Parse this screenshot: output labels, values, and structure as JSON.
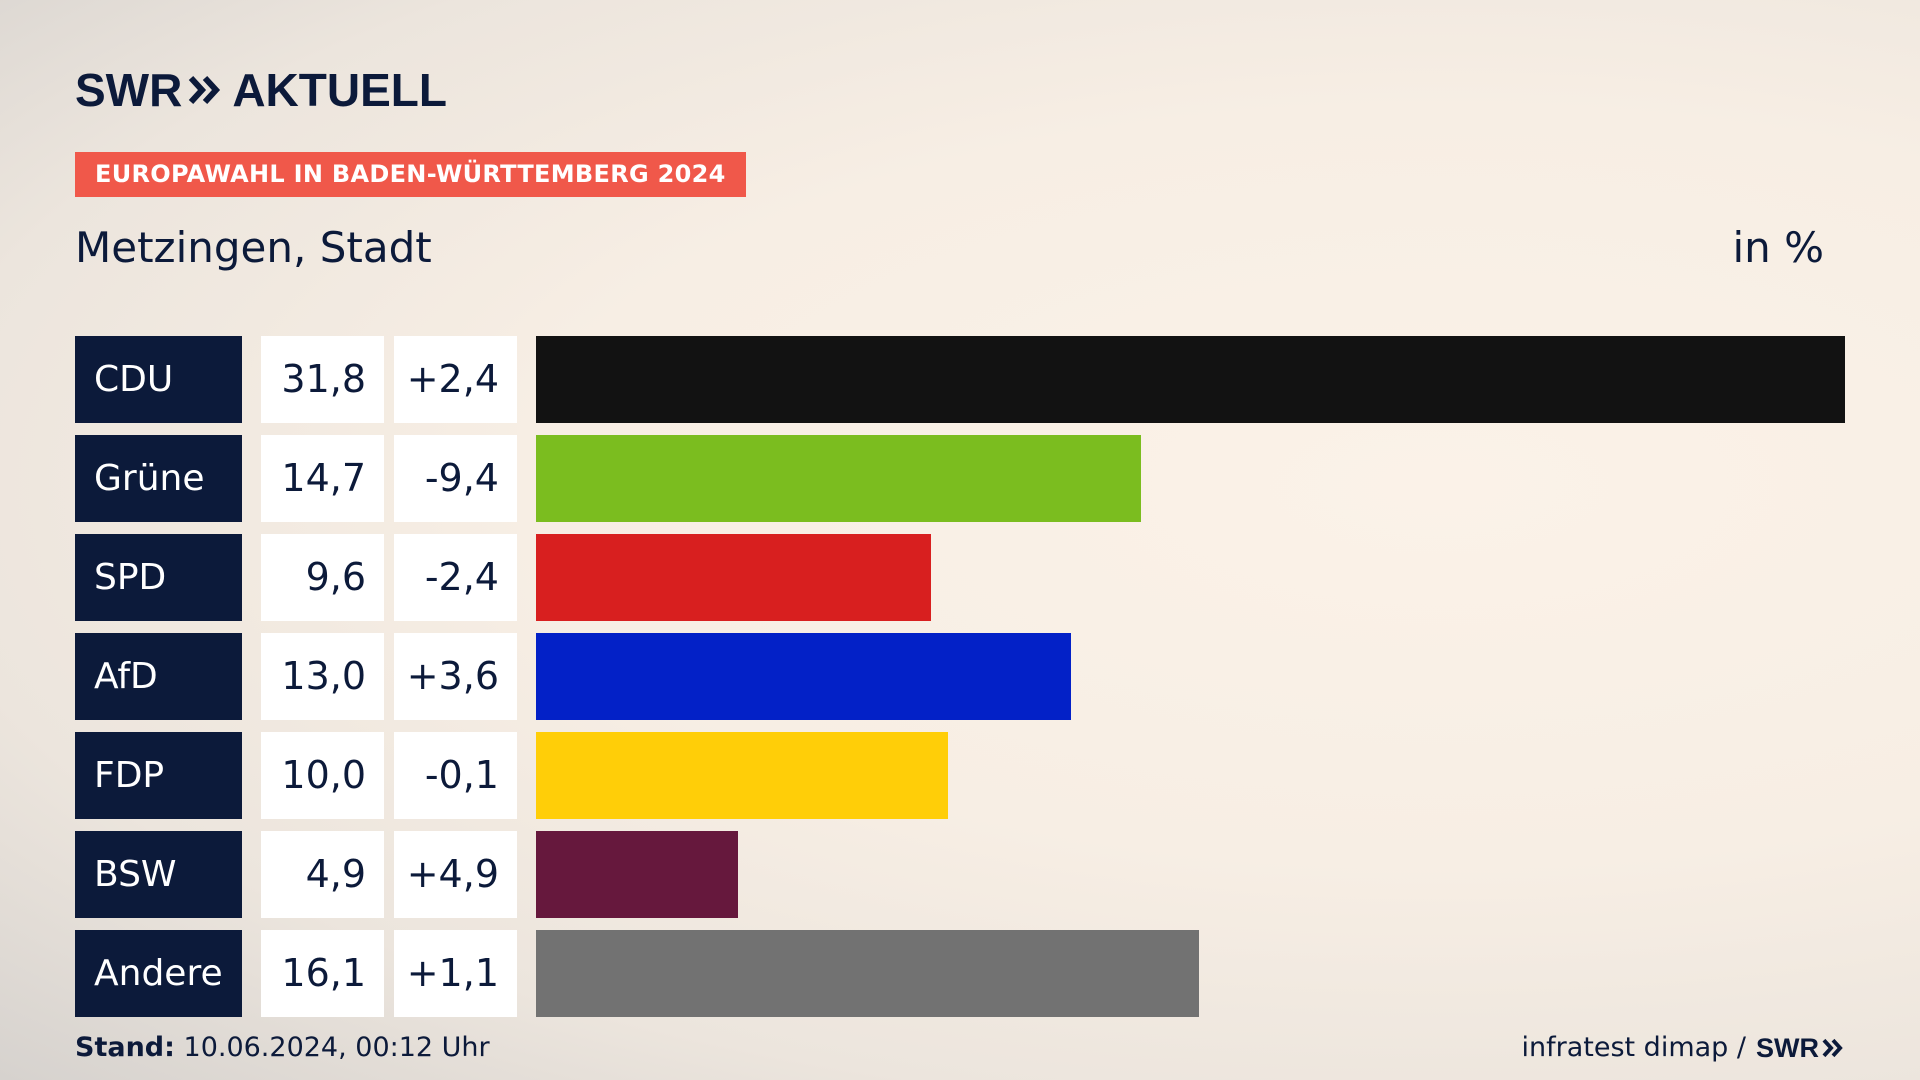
{
  "header": {
    "brand_left": "SWR",
    "brand_right": "AKTUELL",
    "tag": "EUROPAWAHL IN BADEN-WÜRTTEMBERG 2024",
    "place": "Metzingen, Stadt",
    "unit": "in %"
  },
  "colors": {
    "navy": "#0c1a3a",
    "tag_red": "#f0584a"
  },
  "chart_data": {
    "type": "bar",
    "orientation": "horizontal",
    "categories": [
      "CDU",
      "Grüne",
      "SPD",
      "AfD",
      "FDP",
      "BSW",
      "Andere"
    ],
    "values": [
      31.8,
      14.7,
      9.6,
      13.0,
      10.0,
      4.9,
      16.1
    ],
    "value_labels": [
      "31,8",
      "14,7",
      "9,6",
      "13,0",
      "10,0",
      "4,9",
      "16,1"
    ],
    "change_labels": [
      "+2,4",
      "-9,4",
      "-2,4",
      "+3,6",
      "-0,1",
      "+4,9",
      "+1,1"
    ],
    "bar_colors": [
      "#121212",
      "#7bbd1f",
      "#d81f1f",
      "#0321c7",
      "#ffce08",
      "#66183d",
      "#727272"
    ],
    "xlim": [
      0,
      31.8
    ]
  },
  "footer": {
    "stand_label": "Stand:",
    "stand_value": "10.06.2024, 00:12 Uhr",
    "source": "infratest dimap /",
    "source_logo": "SWR"
  }
}
